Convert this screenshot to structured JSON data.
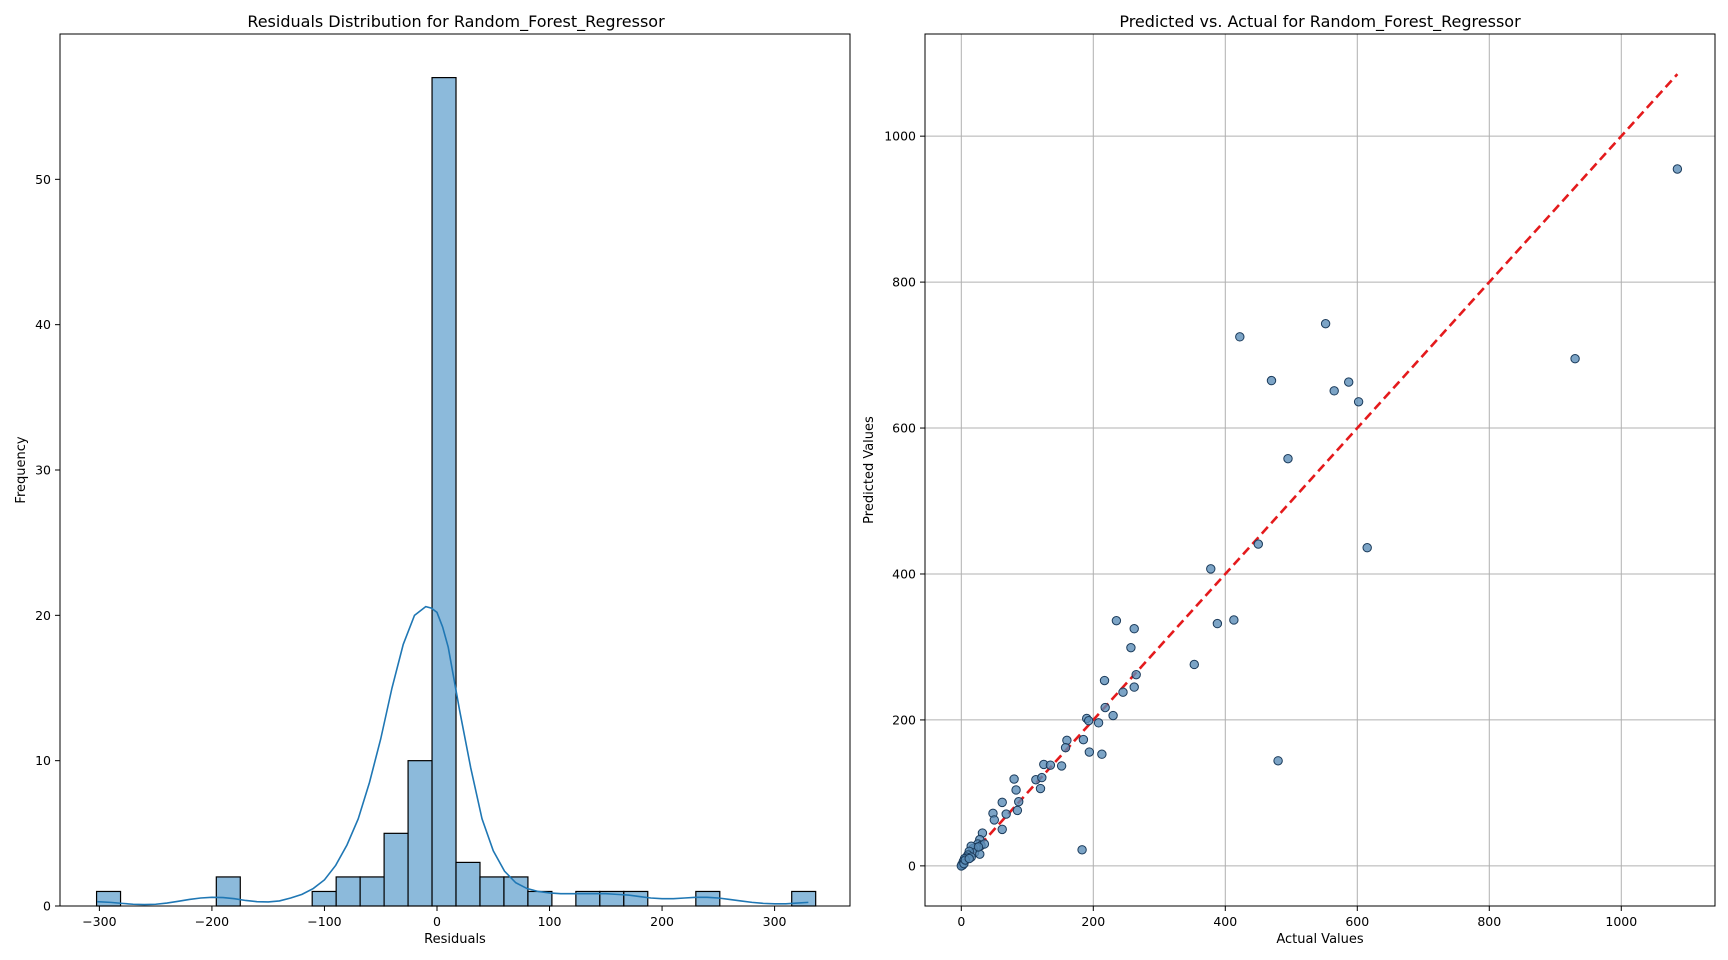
{
  "chart_data": [
    {
      "type": "histogram",
      "title": "Residuals Distribution for Random_Forest_Regressor",
      "xlabel": "Residuals",
      "ylabel": "Frequency",
      "xlim": [
        -335,
        367
      ],
      "ylim": [
        0,
        60
      ],
      "xticks": [
        -300,
        -200,
        -100,
        0,
        100,
        200,
        300
      ],
      "yticks": [
        0,
        10,
        20,
        30,
        40,
        50
      ],
      "grid": false,
      "bar_color": "#8cbadb",
      "edge_color": "#000000",
      "bins": [
        {
          "x0": -302.5,
          "x1": -281.2,
          "count": 1
        },
        {
          "x0": -196.1,
          "x1": -174.8,
          "count": 2
        },
        {
          "x0": -110.9,
          "x1": -89.6,
          "count": 1
        },
        {
          "x0": -89.6,
          "x1": -68.3,
          "count": 2
        },
        {
          "x0": -68.3,
          "x1": -47.0,
          "count": 2
        },
        {
          "x0": -47.0,
          "x1": -25.7,
          "count": 5
        },
        {
          "x0": -25.7,
          "x1": -4.4,
          "count": 10
        },
        {
          "x0": -4.4,
          "x1": 16.9,
          "count": 57
        },
        {
          "x0": 16.9,
          "x1": 38.2,
          "count": 3
        },
        {
          "x0": 38.2,
          "x1": 59.5,
          "count": 2
        },
        {
          "x0": 59.5,
          "x1": 80.8,
          "count": 2
        },
        {
          "x0": 80.8,
          "x1": 102.1,
          "count": 1
        },
        {
          "x0": 123.4,
          "x1": 144.7,
          "count": 1
        },
        {
          "x0": 144.7,
          "x1": 166.0,
          "count": 1
        },
        {
          "x0": 166.0,
          "x1": 187.3,
          "count": 1
        },
        {
          "x0": 230.0,
          "x1": 251.3,
          "count": 1
        },
        {
          "x0": 315.2,
          "x1": 336.5,
          "count": 1
        }
      ],
      "kde": {
        "color": "#1f77b4",
        "x": [
          -302,
          -290,
          -280,
          -270,
          -260,
          -250,
          -240,
          -230,
          -220,
          -210,
          -200,
          -190,
          -180,
          -170,
          -160,
          -150,
          -140,
          -130,
          -120,
          -110,
          -100,
          -90,
          -80,
          -70,
          -60,
          -50,
          -40,
          -30,
          -20,
          -10,
          -5,
          0,
          5,
          10,
          20,
          30,
          40,
          50,
          60,
          70,
          80,
          90,
          100,
          110,
          120,
          130,
          140,
          150,
          160,
          170,
          180,
          190,
          200,
          210,
          220,
          230,
          240,
          250,
          260,
          270,
          280,
          290,
          300,
          310,
          320,
          330
        ],
        "y": [
          0.3,
          0.25,
          0.18,
          0.12,
          0.1,
          0.12,
          0.2,
          0.32,
          0.45,
          0.55,
          0.6,
          0.58,
          0.5,
          0.38,
          0.3,
          0.28,
          0.35,
          0.55,
          0.8,
          1.2,
          1.8,
          2.8,
          4.2,
          6.0,
          8.5,
          11.5,
          15.0,
          18.0,
          20.0,
          20.6,
          20.5,
          20.2,
          19.2,
          17.8,
          13.5,
          9.5,
          6.0,
          3.8,
          2.4,
          1.6,
          1.2,
          1.0,
          0.9,
          0.85,
          0.85,
          0.85,
          0.85,
          0.85,
          0.8,
          0.75,
          0.65,
          0.55,
          0.5,
          0.5,
          0.55,
          0.6,
          0.6,
          0.55,
          0.45,
          0.35,
          0.25,
          0.18,
          0.15,
          0.15,
          0.2,
          0.25
        ]
      }
    },
    {
      "type": "scatter",
      "title": "Predicted vs. Actual for Random_Forest_Regressor",
      "xlabel": "Actual Values",
      "ylabel": "Predicted Values",
      "xlim": [
        -55,
        1142
      ],
      "ylim": [
        -55,
        1140
      ],
      "xticks": [
        0,
        200,
        400,
        600,
        800,
        1000
      ],
      "yticks": [
        0,
        200,
        400,
        600,
        800,
        1000
      ],
      "grid": true,
      "point_color": "#5b8db8",
      "point_edge": "#1a3a5a",
      "reference_line": {
        "x": [
          0,
          1085
        ],
        "y": [
          0,
          1085
        ],
        "color": "#e41a1c",
        "style": "dashed"
      },
      "points": [
        [
          1085,
          955
        ],
        [
          930,
          695
        ],
        [
          422,
          725
        ],
        [
          552,
          743
        ],
        [
          470,
          665
        ],
        [
          587,
          663
        ],
        [
          565,
          651
        ],
        [
          602,
          636
        ],
        [
          495,
          558
        ],
        [
          615,
          436
        ],
        [
          450,
          441
        ],
        [
          378,
          407
        ],
        [
          413,
          337
        ],
        [
          388,
          332
        ],
        [
          353,
          276
        ],
        [
          480,
          144
        ],
        [
          235,
          336
        ],
        [
          262,
          325
        ],
        [
          257,
          299
        ],
        [
          217,
          254
        ],
        [
          265,
          262
        ],
        [
          262,
          245
        ],
        [
          245,
          238
        ],
        [
          218,
          217
        ],
        [
          230,
          206
        ],
        [
          190,
          202
        ],
        [
          208,
          196
        ],
        [
          193,
          199
        ],
        [
          185,
          173
        ],
        [
          160,
          172
        ],
        [
          158,
          162
        ],
        [
          194,
          156
        ],
        [
          213,
          153
        ],
        [
          125,
          139
        ],
        [
          135,
          138
        ],
        [
          152,
          137
        ],
        [
          113,
          118
        ],
        [
          122,
          121
        ],
        [
          120,
          106
        ],
        [
          80,
          119
        ],
        [
          83,
          104
        ],
        [
          62,
          87
        ],
        [
          87,
          88
        ],
        [
          68,
          71
        ],
        [
          85,
          76
        ],
        [
          48,
          72
        ],
        [
          50,
          63
        ],
        [
          62,
          50
        ],
        [
          32,
          45
        ],
        [
          183,
          22
        ],
        [
          28,
          36
        ],
        [
          25,
          30
        ],
        [
          30,
          28
        ],
        [
          22,
          25
        ],
        [
          18,
          24
        ],
        [
          15,
          27
        ],
        [
          20,
          18
        ],
        [
          28,
          16
        ],
        [
          12,
          20
        ],
        [
          10,
          15
        ],
        [
          8,
          12
        ],
        [
          15,
          12
        ],
        [
          5,
          10
        ],
        [
          3,
          6
        ],
        [
          1,
          2
        ],
        [
          2,
          1
        ],
        [
          0,
          0
        ],
        [
          4,
          3
        ],
        [
          6,
          8
        ],
        [
          12,
          10
        ],
        [
          35,
          30
        ],
        [
          26,
          26
        ]
      ]
    }
  ]
}
